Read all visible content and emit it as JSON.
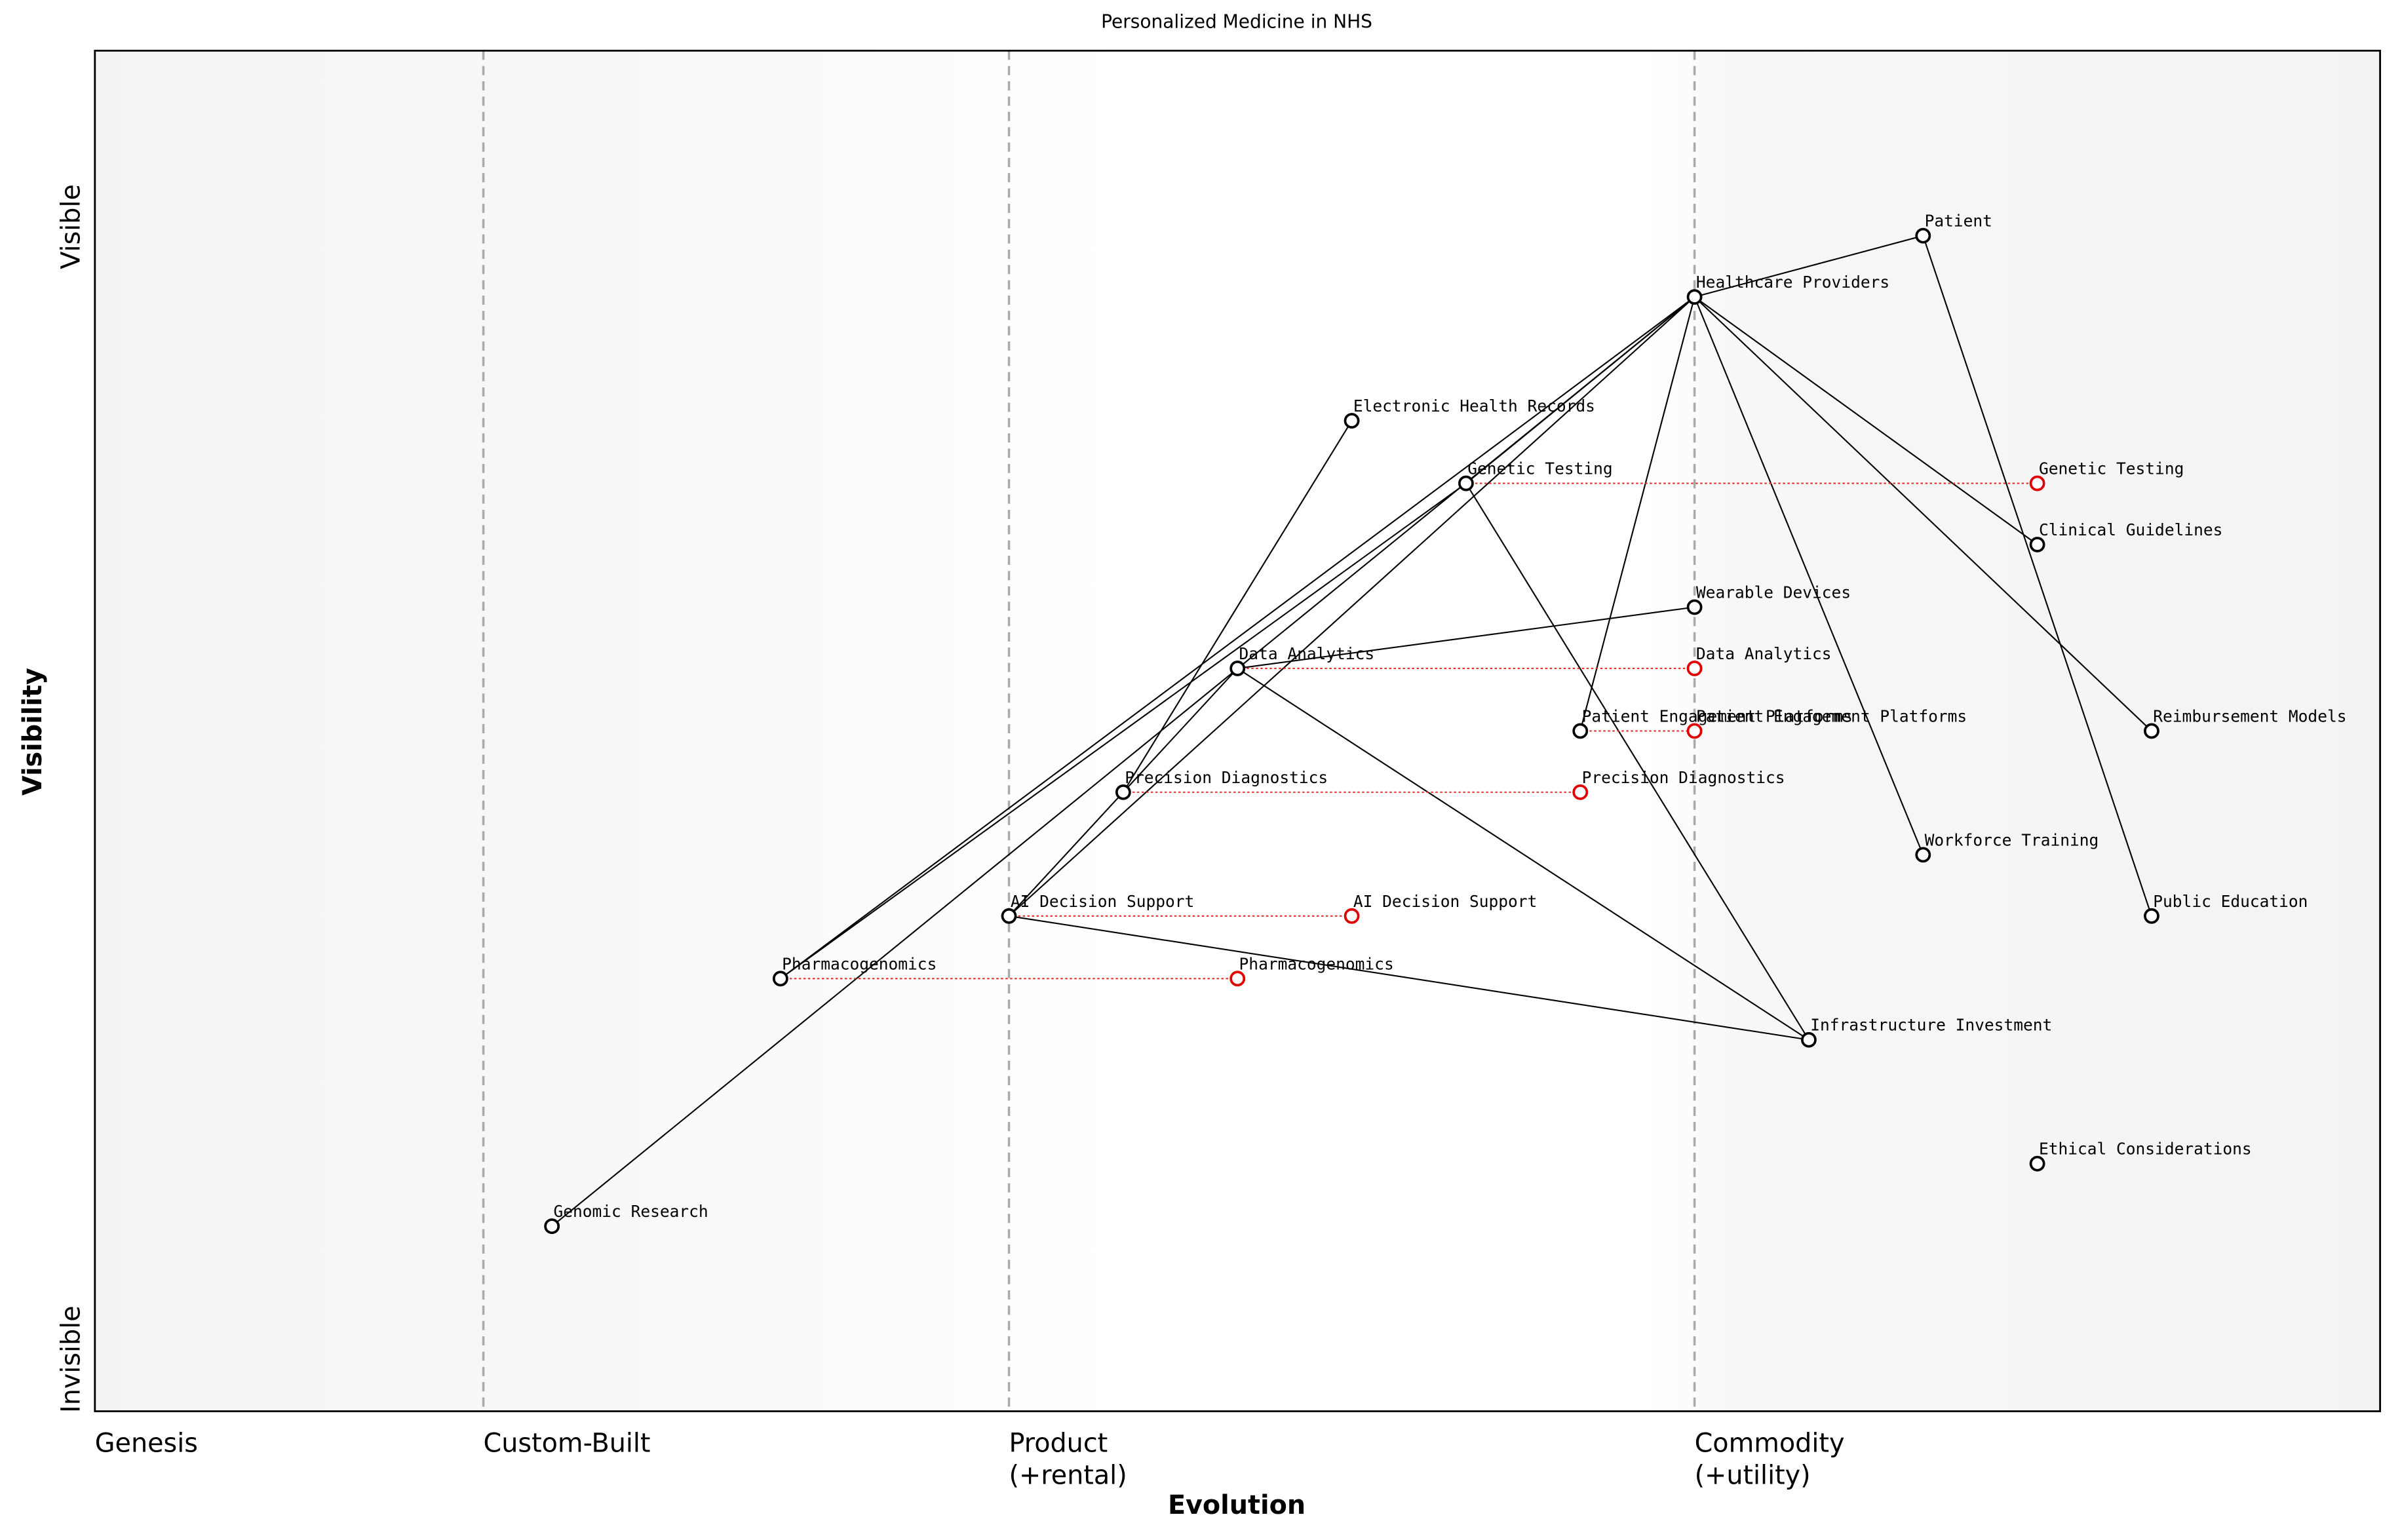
{
  "title": "Personalized Medicine in NHS",
  "x_axis": {
    "label": "Evolution",
    "stages": [
      {
        "position": 0,
        "lines": [
          "Genesis"
        ]
      },
      {
        "position": 0.17,
        "lines": [
          "Custom-Built"
        ]
      },
      {
        "position": 0.4,
        "lines": [
          "Product",
          "(+rental)"
        ]
      },
      {
        "position": 0.7,
        "lines": [
          "Commodity",
          "(+utility)"
        ]
      }
    ]
  },
  "y_axis": {
    "label": "Visibility",
    "top": "Visible",
    "bottom": "Invisible"
  },
  "nodes": [
    {
      "label": "Patient",
      "evolution": 0.8,
      "visibility": 0.864
    },
    {
      "label": "Healthcare Providers",
      "evolution": 0.7,
      "visibility": 0.819
    },
    {
      "label": "Electronic Health Records",
      "evolution": 0.55,
      "visibility": 0.728
    },
    {
      "label": "Genetic Testing",
      "evolution": 0.6,
      "visibility": 0.682
    },
    {
      "label": "Clinical Guidelines",
      "evolution": 0.85,
      "visibility": 0.637
    },
    {
      "label": "Wearable Devices",
      "evolution": 0.7,
      "visibility": 0.591
    },
    {
      "label": "Data Analytics",
      "evolution": 0.5,
      "visibility": 0.546
    },
    {
      "label": "Patient Engagement Platforms",
      "evolution": 0.65,
      "visibility": 0.5
    },
    {
      "label": "Reimbursement Models",
      "evolution": 0.9,
      "visibility": 0.5
    },
    {
      "label": "Precision Diagnostics",
      "evolution": 0.45,
      "visibility": 0.455
    },
    {
      "label": "Workforce Training",
      "evolution": 0.8,
      "visibility": 0.409
    },
    {
      "label": "AI Decision Support",
      "evolution": 0.4,
      "visibility": 0.364
    },
    {
      "label": "Public Education",
      "evolution": 0.9,
      "visibility": 0.364
    },
    {
      "label": "Pharmacogenomics",
      "evolution": 0.3,
      "visibility": 0.318
    },
    {
      "label": "Infrastructure Investment",
      "evolution": 0.75,
      "visibility": 0.273
    },
    {
      "label": "Ethical Considerations",
      "evolution": 0.85,
      "visibility": 0.182
    },
    {
      "label": "Genomic Research",
      "evolution": 0.2,
      "visibility": 0.136
    }
  ],
  "links": [
    [
      0,
      1
    ],
    [
      0,
      12
    ],
    [
      1,
      3
    ],
    [
      1,
      13
    ],
    [
      1,
      11
    ],
    [
      1,
      16
    ],
    [
      1,
      7
    ],
    [
      1,
      10
    ],
    [
      1,
      4
    ],
    [
      1,
      8
    ],
    [
      3,
      13
    ],
    [
      3,
      14
    ],
    [
      6,
      14
    ],
    [
      6,
      11
    ],
    [
      6,
      5
    ],
    [
      11,
      14
    ],
    [
      2,
      9
    ]
  ],
  "evolutions": [
    {
      "node": 3,
      "evolution": 0.85,
      "label": "Genetic Testing"
    },
    {
      "node": 6,
      "evolution": 0.7,
      "label": "Data Analytics"
    },
    {
      "node": 7,
      "evolution": 0.7,
      "label": "Patient Engagement Platforms"
    },
    {
      "node": 9,
      "evolution": 0.65,
      "label": "Precision Diagnostics"
    },
    {
      "node": 11,
      "evolution": 0.55,
      "label": "AI Decision Support"
    },
    {
      "node": 13,
      "evolution": 0.5,
      "label": "Pharmacogenomics"
    }
  ]
}
